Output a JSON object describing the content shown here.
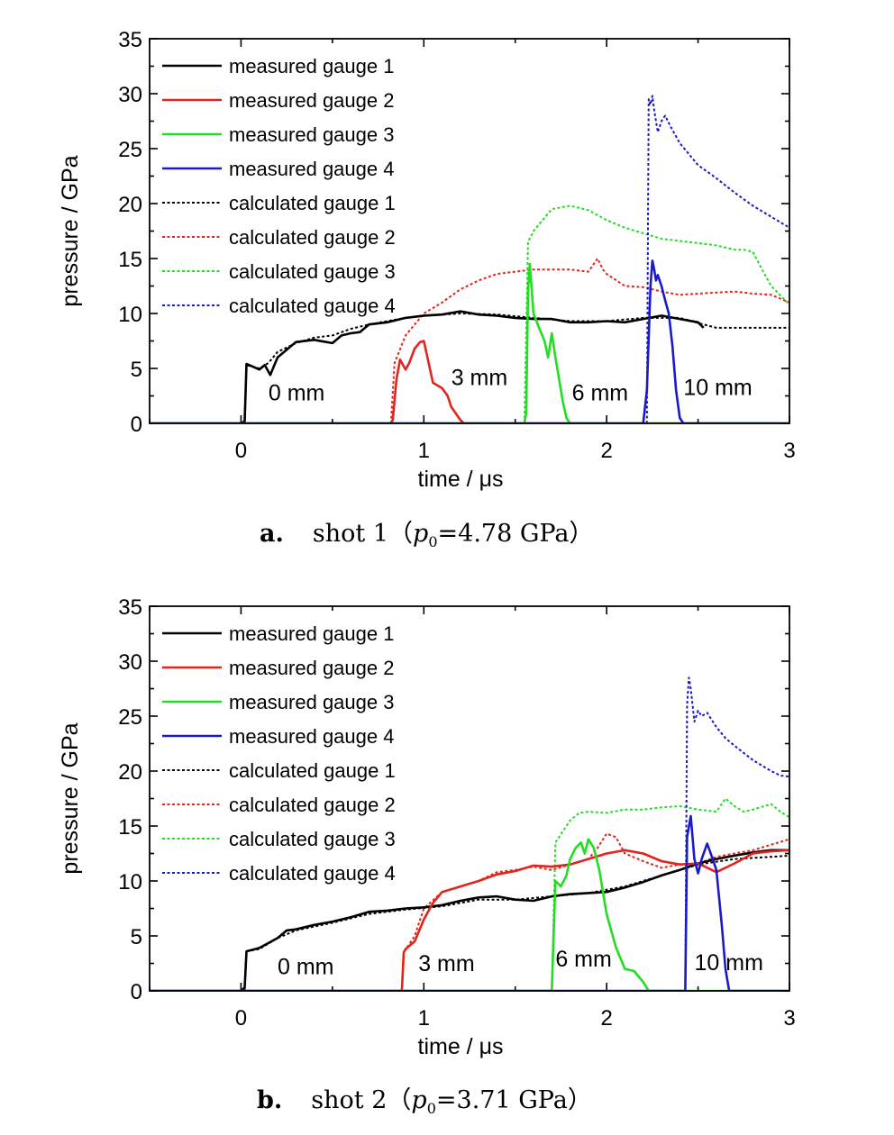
{
  "chart_data": [
    {
      "type": "line",
      "caption_letter": "a.",
      "caption_pre": "shot 1（",
      "caption_sym": "p",
      "caption_sub": "0",
      "caption_post": "=4.78 GPa）",
      "xlabel": "time / μs",
      "ylabel": "pressure / GPa",
      "xlim": [
        -0.5,
        3
      ],
      "ylim": [
        0,
        35
      ],
      "xticks": [
        0,
        1,
        2,
        3
      ],
      "yticks": [
        0,
        5,
        10,
        15,
        20,
        25,
        30,
        35
      ],
      "legend_position": "top-left",
      "annotations": [
        {
          "text": "0 mm",
          "x": 0.15,
          "y": 2.1
        },
        {
          "text": "3 mm",
          "x": 1.15,
          "y": 3.5
        },
        {
          "text": "6 mm",
          "x": 1.81,
          "y": 2.1
        },
        {
          "text": "10 mm",
          "x": 2.42,
          "y": 2.6
        }
      ],
      "series": [
        {
          "name": "measured gauge 1",
          "color": "#000000",
          "dash": false,
          "x": [
            -0.5,
            0.0,
            0.02,
            0.03,
            0.06,
            0.1,
            0.13,
            0.16,
            0.2,
            0.3,
            0.4,
            0.5,
            0.55,
            0.6,
            0.65,
            0.7,
            0.8,
            0.9,
            1.0,
            1.1,
            1.2,
            1.3,
            1.4,
            1.5,
            1.6,
            1.7,
            1.8,
            1.9,
            2.0,
            2.1,
            2.2,
            2.3,
            2.4,
            2.5,
            2.53
          ],
          "y": [
            0,
            0,
            0.2,
            5.4,
            5.2,
            4.9,
            5.3,
            4.4,
            6.0,
            7.4,
            7.6,
            7.3,
            8.0,
            8.2,
            8.3,
            9.0,
            9.2,
            9.6,
            9.8,
            9.9,
            10.2,
            9.9,
            9.8,
            9.6,
            9.5,
            9.5,
            9.2,
            9.2,
            9.3,
            9.2,
            9.5,
            9.8,
            9.5,
            9.2,
            8.7
          ]
        },
        {
          "name": "measured gauge 2",
          "color": "#e3241c",
          "dash": false,
          "x": [
            -0.5,
            0.82,
            0.83,
            0.85,
            0.87,
            0.9,
            0.92,
            0.95,
            0.98,
            1.0,
            1.02,
            1.05,
            1.08,
            1.1,
            1.13,
            1.15,
            1.2,
            1.22,
            3.0
          ],
          "y": [
            0,
            0,
            0.3,
            4.0,
            5.8,
            4.9,
            5.5,
            6.8,
            7.4,
            7.5,
            6.0,
            3.7,
            3.4,
            3.2,
            2.5,
            1.5,
            0.3,
            0,
            0
          ]
        },
        {
          "name": "measured gauge 3",
          "color": "#22dd22",
          "dash": false,
          "x": [
            -0.5,
            1.55,
            1.56,
            1.57,
            1.58,
            1.6,
            1.63,
            1.66,
            1.68,
            1.7,
            1.72,
            1.74,
            1.76,
            1.78,
            1.8,
            3.0
          ],
          "y": [
            0,
            0,
            1.0,
            12.0,
            14.5,
            10.0,
            8.7,
            7.5,
            6.0,
            8.2,
            6.0,
            4.0,
            2.0,
            0.5,
            0,
            0
          ]
        },
        {
          "name": "measured gauge 4",
          "color": "#1a1ac8",
          "dash": false,
          "x": [
            -0.5,
            2.2,
            2.22,
            2.24,
            2.25,
            2.26,
            2.27,
            2.28,
            2.3,
            2.32,
            2.34,
            2.36,
            2.38,
            2.4,
            2.42,
            3.0
          ],
          "y": [
            0,
            0,
            3.0,
            12.5,
            14.8,
            14.0,
            13.0,
            13.5,
            12.5,
            11.2,
            10.0,
            7.0,
            3.0,
            0.5,
            0,
            0
          ]
        },
        {
          "name": "calculated gauge 1",
          "color": "#000000",
          "dash": true,
          "x": [
            0.02,
            0.03,
            0.1,
            0.15,
            0.2,
            0.3,
            0.4,
            0.5,
            0.6,
            0.7,
            0.8,
            0.9,
            1.0,
            1.2,
            1.4,
            1.6,
            1.8,
            2.0,
            2.2,
            2.4,
            2.53,
            2.6,
            2.8,
            3.0
          ],
          "y": [
            0,
            5.3,
            5.0,
            5.5,
            6.5,
            7.3,
            7.8,
            8.0,
            8.6,
            9.0,
            9.3,
            9.6,
            9.8,
            10.0,
            9.9,
            9.6,
            9.3,
            9.3,
            9.6,
            9.6,
            9.0,
            8.7,
            8.7,
            8.7
          ]
        },
        {
          "name": "calculated gauge 2",
          "color": "#e3241c",
          "dash": true,
          "x": [
            0.82,
            0.84,
            0.9,
            1.0,
            1.1,
            1.2,
            1.3,
            1.4,
            1.5,
            1.6,
            1.7,
            1.8,
            1.9,
            1.95,
            1.98,
            2.0,
            2.1,
            2.2,
            2.3,
            2.4,
            2.5,
            2.6,
            2.7,
            2.8,
            2.9,
            3.0
          ],
          "y": [
            0,
            5.5,
            8.0,
            10.0,
            11.0,
            12.2,
            13.0,
            13.6,
            13.8,
            14.0,
            14.0,
            14.0,
            13.8,
            15.0,
            14.0,
            13.6,
            12.5,
            12.4,
            12.0,
            11.7,
            11.8,
            11.9,
            12.0,
            11.8,
            11.7,
            11.0
          ]
        },
        {
          "name": "calculated gauge 3",
          "color": "#22dd22",
          "dash": true,
          "x": [
            1.55,
            1.57,
            1.6,
            1.65,
            1.7,
            1.8,
            1.9,
            2.0,
            2.1,
            2.2,
            2.3,
            2.4,
            2.5,
            2.6,
            2.7,
            2.75,
            2.8,
            2.85,
            2.9,
            3.0
          ],
          "y": [
            0,
            16.5,
            17.5,
            18.5,
            19.5,
            19.8,
            19.4,
            18.5,
            17.8,
            17.3,
            16.8,
            16.6,
            16.4,
            16.2,
            15.8,
            15.8,
            15.6,
            14.0,
            12.5,
            10.8
          ]
        },
        {
          "name": "calculated gauge 4",
          "color": "#1a1ac8",
          "dash": true,
          "x": [
            2.22,
            2.23,
            2.24,
            2.25,
            2.26,
            2.28,
            2.3,
            2.32,
            2.35,
            2.4,
            2.45,
            2.5,
            2.6,
            2.7,
            2.8,
            2.9,
            3.0
          ],
          "y": [
            0,
            29.5,
            29.0,
            29.8,
            28.5,
            26.5,
            27.5,
            28.0,
            27.0,
            25.5,
            24.5,
            23.5,
            22.3,
            21.0,
            19.8,
            18.8,
            17.8
          ]
        }
      ]
    },
    {
      "type": "line",
      "caption_letter": "b.",
      "caption_pre": "shot 2（",
      "caption_sym": "p",
      "caption_sub": "0",
      "caption_post": "=3.71 GPa）",
      "xlabel": "time / μs",
      "ylabel": "pressure / GPa",
      "xlim": [
        -0.5,
        3
      ],
      "ylim": [
        0,
        35
      ],
      "xticks": [
        0,
        1,
        2,
        3
      ],
      "yticks": [
        0,
        5,
        10,
        15,
        20,
        25,
        30,
        35
      ],
      "legend_position": "top-left",
      "annotations": [
        {
          "text": "0 mm",
          "x": 0.2,
          "y": 1.5
        },
        {
          "text": "3 mm",
          "x": 0.97,
          "y": 1.8
        },
        {
          "text": "6 mm",
          "x": 1.72,
          "y": 2.2
        },
        {
          "text": "10 mm",
          "x": 2.48,
          "y": 1.9
        }
      ],
      "series": [
        {
          "name": "measured gauge 1",
          "color": "#000000",
          "dash": false,
          "x": [
            -0.5,
            0.0,
            0.02,
            0.03,
            0.1,
            0.2,
            0.25,
            0.3,
            0.4,
            0.5,
            0.6,
            0.7,
            0.8,
            0.9,
            1.0,
            1.1,
            1.2,
            1.3,
            1.4,
            1.5,
            1.6,
            1.7,
            1.8,
            1.9,
            2.0,
            2.1,
            2.2,
            2.3,
            2.4,
            2.5,
            2.6,
            2.7,
            2.8,
            2.9,
            3.0
          ],
          "y": [
            0,
            0,
            0.3,
            3.6,
            3.9,
            4.8,
            5.5,
            5.6,
            6.0,
            6.3,
            6.7,
            7.2,
            7.3,
            7.5,
            7.6,
            7.8,
            8.2,
            8.5,
            8.6,
            8.3,
            8.2,
            8.6,
            8.8,
            8.9,
            9.0,
            9.4,
            9.9,
            10.5,
            11.0,
            11.6,
            12.0,
            12.3,
            12.6,
            12.8,
            12.8
          ]
        },
        {
          "name": "measured gauge 2",
          "color": "#e3241c",
          "dash": false,
          "x": [
            -0.5,
            0.88,
            0.89,
            0.9,
            0.95,
            1.0,
            1.05,
            1.1,
            1.2,
            1.3,
            1.4,
            1.5,
            1.6,
            1.7,
            1.8,
            1.9,
            2.0,
            2.1,
            2.2,
            2.3,
            2.4,
            2.5,
            2.6,
            2.7,
            2.8,
            2.9,
            3.0
          ],
          "y": [
            0,
            0,
            3.5,
            3.8,
            4.5,
            6.5,
            8.0,
            9.0,
            9.5,
            10.0,
            10.6,
            10.9,
            11.4,
            11.3,
            11.5,
            12.0,
            12.5,
            12.8,
            12.5,
            11.8,
            11.5,
            11.6,
            10.8,
            11.6,
            12.5,
            12.7,
            12.8
          ]
        },
        {
          "name": "measured gauge 3",
          "color": "#22dd22",
          "dash": false,
          "x": [
            -0.5,
            1.7,
            1.71,
            1.72,
            1.75,
            1.78,
            1.8,
            1.83,
            1.86,
            1.88,
            1.9,
            1.93,
            1.96,
            2.0,
            2.05,
            2.1,
            2.15,
            2.2,
            2.23,
            3.0
          ],
          "y": [
            0,
            0,
            5.0,
            10.0,
            9.5,
            10.5,
            12.0,
            13.0,
            13.5,
            12.5,
            13.8,
            13.0,
            11.0,
            7.0,
            4.0,
            2.0,
            1.8,
            0.8,
            0,
            0
          ]
        },
        {
          "name": "measured gauge 4",
          "color": "#1a1ac8",
          "dash": false,
          "x": [
            -0.5,
            2.43,
            2.44,
            2.46,
            2.48,
            2.5,
            2.52,
            2.55,
            2.58,
            2.6,
            2.63,
            2.65,
            2.67,
            3.0
          ],
          "y": [
            0,
            0,
            14.0,
            15.9,
            12.0,
            10.7,
            12.0,
            13.4,
            12.0,
            11.0,
            6.0,
            2.0,
            0,
            0
          ]
        },
        {
          "name": "calculated gauge 1",
          "color": "#000000",
          "dash": true,
          "x": [
            0.02,
            0.03,
            0.1,
            0.2,
            0.3,
            0.5,
            0.7,
            0.9,
            1.1,
            1.3,
            1.5,
            1.7,
            1.9,
            2.1,
            2.3,
            2.5,
            2.7,
            2.9,
            3.0
          ],
          "y": [
            0,
            3.6,
            3.8,
            4.8,
            5.5,
            6.2,
            7.0,
            7.4,
            7.7,
            8.3,
            8.3,
            8.6,
            8.9,
            9.5,
            10.5,
            11.5,
            12.0,
            12.2,
            12.3
          ]
        },
        {
          "name": "calculated gauge 2",
          "color": "#e3241c",
          "dash": true,
          "x": [
            0.88,
            0.89,
            0.95,
            1.0,
            1.1,
            1.2,
            1.3,
            1.4,
            1.5,
            1.6,
            1.7,
            1.8,
            1.9,
            1.95,
            2.0,
            2.05,
            2.1,
            2.2,
            2.3,
            2.4,
            2.5,
            2.6,
            2.7,
            2.8,
            2.9,
            3.0
          ],
          "y": [
            0,
            3.5,
            5.0,
            7.5,
            9.0,
            9.5,
            10.0,
            10.8,
            11.0,
            11.3,
            11.0,
            11.5,
            12.0,
            13.0,
            14.3,
            14.0,
            12.5,
            11.8,
            11.2,
            11.5,
            11.6,
            12.2,
            12.5,
            12.8,
            13.3,
            13.8
          ]
        },
        {
          "name": "calculated gauge 3",
          "color": "#22dd22",
          "dash": true,
          "x": [
            1.7,
            1.72,
            1.8,
            1.85,
            1.9,
            2.0,
            2.1,
            2.2,
            2.3,
            2.4,
            2.5,
            2.6,
            2.65,
            2.7,
            2.75,
            2.8,
            2.9,
            2.95,
            3.0
          ],
          "y": [
            0,
            13.5,
            15.5,
            16.2,
            16.3,
            16.2,
            16.5,
            16.5,
            16.7,
            16.8,
            16.5,
            16.3,
            17.5,
            16.8,
            16.3,
            16.5,
            17.0,
            16.3,
            15.8
          ]
        },
        {
          "name": "calculated gauge 4",
          "color": "#1a1ac8",
          "dash": true,
          "x": [
            2.43,
            2.44,
            2.45,
            2.46,
            2.48,
            2.5,
            2.52,
            2.55,
            2.6,
            2.65,
            2.7,
            2.8,
            2.9,
            2.95,
            3.0
          ],
          "y": [
            0,
            26.0,
            28.5,
            27.5,
            24.5,
            25.5,
            25.0,
            25.3,
            24.0,
            23.0,
            22.3,
            21.0,
            20.0,
            19.6,
            19.5
          ]
        }
      ]
    }
  ]
}
